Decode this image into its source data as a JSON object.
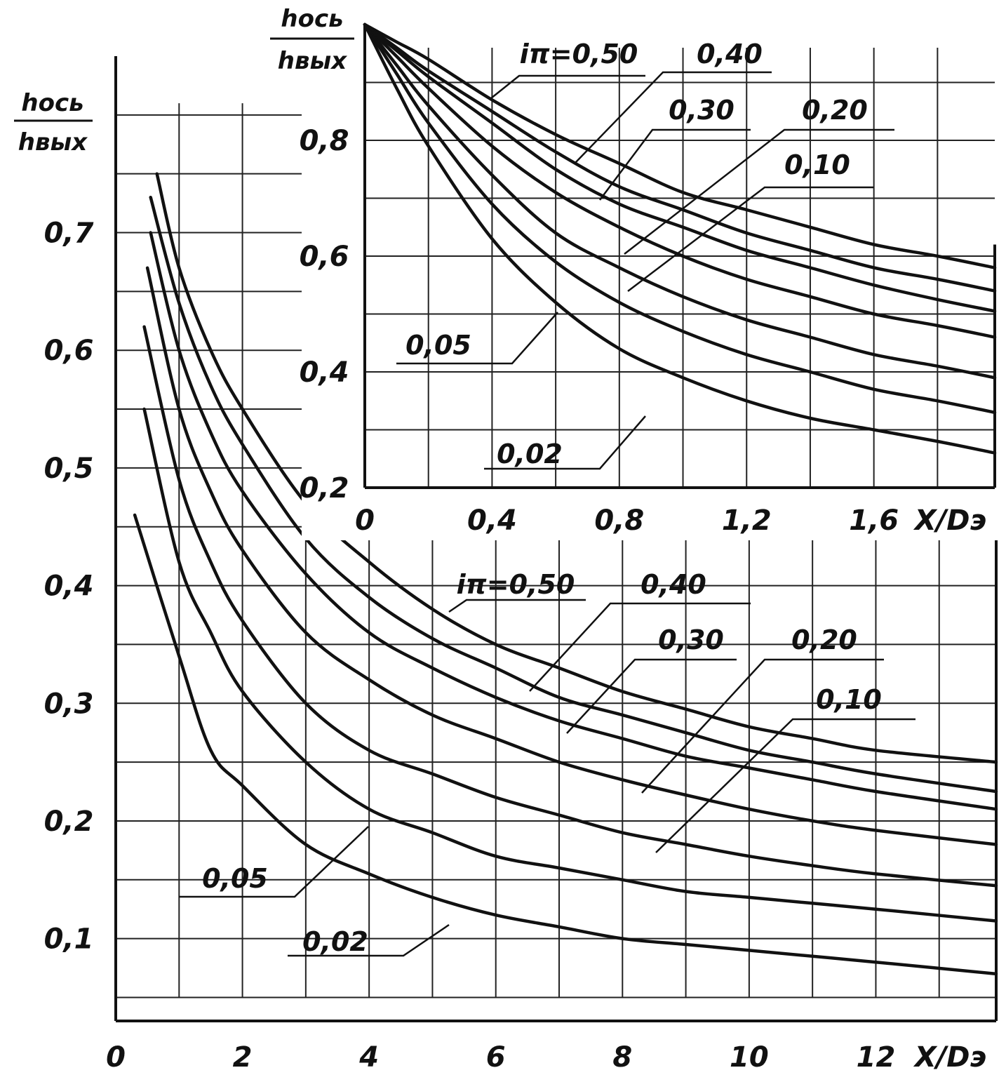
{
  "chart_data": [
    {
      "type": "line",
      "name": "main",
      "xlabel": "X/Dэ",
      "ylabel_num": "hось",
      "ylabel_den": "hвых",
      "xlim": [
        0,
        13.9
      ],
      "ylim": [
        0.03,
        0.85
      ],
      "x_ticks": [
        "0",
        "2",
        "4",
        "6",
        "8",
        "10",
        "12"
      ],
      "y_ticks": [
        "0,1",
        "0,2",
        "0,3",
        "0,4",
        "0,5",
        "0,6",
        "0,7"
      ],
      "grid": true,
      "x": [
        0.5,
        1,
        1.5,
        2,
        3,
        4,
        5,
        6,
        7,
        8,
        9,
        10,
        11,
        12,
        13.9
      ],
      "series": [
        {
          "name": "iπ=0,50",
          "x0": 0.65,
          "values": [
            0.75,
            0.67,
            0.6,
            0.55,
            0.47,
            0.42,
            0.38,
            0.35,
            0.33,
            0.31,
            0.295,
            0.28,
            0.27,
            0.26,
            0.25
          ]
        },
        {
          "name": "0,40",
          "x0": 0.55,
          "values": [
            0.73,
            0.64,
            0.57,
            0.52,
            0.44,
            0.39,
            0.355,
            0.33,
            0.305,
            0.29,
            0.275,
            0.26,
            0.25,
            0.24,
            0.225
          ]
        },
        {
          "name": "0,30",
          "x0": 0.55,
          "values": [
            0.7,
            0.6,
            0.53,
            0.48,
            0.41,
            0.36,
            0.33,
            0.305,
            0.285,
            0.27,
            0.255,
            0.245,
            0.235,
            0.225,
            0.21
          ]
        },
        {
          "name": "0,20",
          "x0": 0.5,
          "values": [
            0.67,
            0.55,
            0.48,
            0.43,
            0.36,
            0.32,
            0.29,
            0.27,
            0.25,
            0.235,
            0.222,
            0.21,
            0.2,
            0.192,
            0.18
          ]
        },
        {
          "name": "0,10",
          "x0": 0.45,
          "values": [
            0.62,
            0.49,
            0.42,
            0.37,
            0.3,
            0.26,
            0.24,
            0.22,
            0.205,
            0.19,
            0.18,
            0.17,
            0.162,
            0.155,
            0.145
          ]
        },
        {
          "name": "0,05",
          "x0": 0.45,
          "values": [
            0.55,
            0.42,
            0.36,
            0.31,
            0.25,
            0.21,
            0.19,
            0.17,
            0.16,
            0.15,
            0.14,
            0.135,
            0.13,
            0.125,
            0.115
          ]
        },
        {
          "name": "0,02",
          "x0": 0.3,
          "values": [
            0.46,
            0.34,
            0.26,
            0.23,
            0.18,
            0.155,
            0.135,
            0.12,
            0.11,
            0.1,
            0.095,
            0.09,
            0.085,
            0.08,
            0.07
          ]
        }
      ],
      "annotations": [
        "iπ=0,50",
        "0,40",
        "0,30",
        "0,20",
        "0,10",
        "0,05",
        "0,02"
      ]
    },
    {
      "type": "line",
      "name": "inset",
      "xlabel": "X/Dэ",
      "ylabel_num": "hось",
      "ylabel_den": "hвых",
      "xlim": [
        0,
        1.98
      ],
      "ylim": [
        0.2,
        1.0
      ],
      "x_ticks": [
        "0",
        "0,4",
        "0,8",
        "1,2",
        "1,6"
      ],
      "y_ticks": [
        "0,2",
        "0,4",
        "0,6",
        "0,8"
      ],
      "grid": true,
      "x": [
        0,
        0.1,
        0.2,
        0.4,
        0.6,
        0.8,
        1.0,
        1.2,
        1.4,
        1.6,
        1.8,
        1.98
      ],
      "series": [
        {
          "name": "iπ=0,50",
          "values": [
            1.0,
            0.97,
            0.94,
            0.87,
            0.81,
            0.76,
            0.71,
            0.68,
            0.65,
            0.62,
            0.6,
            0.58
          ]
        },
        {
          "name": "0,40",
          "values": [
            1.0,
            0.96,
            0.92,
            0.85,
            0.78,
            0.72,
            0.68,
            0.64,
            0.61,
            0.58,
            0.56,
            0.54
          ]
        },
        {
          "name": "0,30",
          "values": [
            1.0,
            0.955,
            0.91,
            0.83,
            0.75,
            0.69,
            0.65,
            0.61,
            0.58,
            0.55,
            0.525,
            0.505
          ]
        },
        {
          "name": "0,20",
          "values": [
            1.0,
            0.945,
            0.89,
            0.79,
            0.71,
            0.65,
            0.6,
            0.56,
            0.53,
            0.5,
            0.48,
            0.46
          ]
        },
        {
          "name": "0,10",
          "values": [
            1.0,
            0.93,
            0.86,
            0.74,
            0.64,
            0.58,
            0.53,
            0.49,
            0.46,
            0.43,
            0.41,
            0.39
          ]
        },
        {
          "name": "0,05",
          "values": [
            1.0,
            0.915,
            0.83,
            0.69,
            0.59,
            0.52,
            0.47,
            0.43,
            0.4,
            0.37,
            0.35,
            0.33
          ]
        },
        {
          "name": "0,02",
          "values": [
            1.0,
            0.89,
            0.79,
            0.63,
            0.52,
            0.44,
            0.39,
            0.35,
            0.32,
            0.3,
            0.28,
            0.26
          ]
        }
      ],
      "annotations": [
        "iπ=0,50",
        "0,40",
        "0,30",
        "0,20",
        "0,10",
        "0,05",
        "0,02"
      ]
    }
  ]
}
